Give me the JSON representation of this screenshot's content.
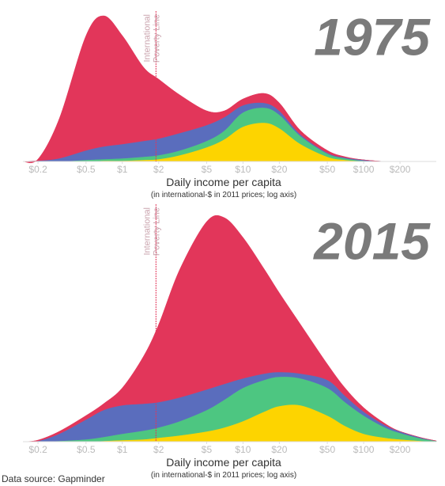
{
  "chart_data": [
    {
      "type": "area",
      "stacked": true,
      "title": "1975",
      "xscale": "log",
      "x": [
        0.15,
        0.2,
        0.3,
        0.5,
        0.7,
        1,
        1.5,
        2,
        3,
        5,
        7,
        10,
        15,
        20,
        30,
        50,
        70,
        100,
        150,
        200,
        300,
        400
      ],
      "series": [
        {
          "color": "#fdd400",
          "values": [
            0,
            0,
            0,
            0,
            1,
            1,
            2,
            3,
            8,
            18,
            28,
            44,
            49,
            42,
            22,
            6,
            2,
            0.5,
            0,
            0,
            0,
            0
          ]
        },
        {
          "color": "#4dc681",
          "values": [
            0,
            0,
            0,
            2,
            2,
            3,
            4,
            5,
            6,
            8,
            11,
            18,
            19,
            17,
            10,
            4,
            2,
            0.5,
            0,
            0,
            0,
            0
          ]
        },
        {
          "color": "#5a6dbd",
          "values": [
            0,
            1,
            4,
            12,
            16,
            18,
            20,
            21,
            22,
            20,
            17,
            9,
            6,
            5,
            2,
            1,
            1,
            1,
            0,
            0,
            0,
            0
          ]
        },
        {
          "color": "#e2365a",
          "values": [
            0,
            2,
            50,
            145,
            165,
            137,
            93,
            75,
            48,
            18,
            8,
            8,
            12,
            10,
            5,
            3,
            1,
            0,
            0,
            0,
            0,
            0
          ]
        }
      ],
      "xlim": [
        0.15,
        400
      ],
      "ylim": [
        0,
        190
      ],
      "xticks": [
        {
          "value": 0.2,
          "label": "$0.2"
        },
        {
          "value": 0.5,
          "label": "$0.5"
        },
        {
          "value": 1,
          "label": "$1"
        },
        {
          "value": 2,
          "label": "$2"
        },
        {
          "value": 5,
          "label": "$5"
        },
        {
          "value": 10,
          "label": "$10"
        },
        {
          "value": 20,
          "label": "$20"
        },
        {
          "value": 50,
          "label": "$50"
        },
        {
          "value": 100,
          "label": "$100"
        },
        {
          "value": 200,
          "label": "$200"
        }
      ],
      "xlabel": "Daily income per capita",
      "xlabel_note": "(in international-$ in 2011 prices; log axis)",
      "annotation": {
        "x": 1.9,
        "lines": [
          "International",
          "Poverty Line"
        ]
      }
    },
    {
      "type": "area",
      "stacked": true,
      "title": "2015",
      "xscale": "log",
      "x": [
        0.15,
        0.2,
        0.3,
        0.5,
        0.7,
        1,
        1.5,
        2,
        3,
        5,
        7,
        10,
        15,
        20,
        30,
        50,
        70,
        100,
        150,
        200,
        300,
        400
      ],
      "series": [
        {
          "color": "#fdd400",
          "values": [
            0,
            0,
            0,
            0,
            1,
            2,
            3,
            5,
            8,
            13,
            18,
            26,
            38,
            45,
            46,
            33,
            20,
            10,
            5,
            3,
            1,
            0
          ]
        },
        {
          "color": "#4dc681",
          "values": [
            0,
            0,
            1,
            3,
            5,
            8,
            11,
            13,
            18,
            27,
            35,
            42,
            40,
            37,
            34,
            35,
            30,
            23,
            13,
            8,
            3,
            1
          ]
        },
        {
          "color": "#5a6dbd",
          "values": [
            0,
            1,
            9,
            25,
            34,
            36,
            34,
            32,
            30,
            26,
            20,
            12,
            8,
            6,
            6,
            10,
            8,
            5,
            3,
            2,
            1,
            0
          ]
        },
        {
          "color": "#e2365a",
          "values": [
            0,
            1,
            3,
            5,
            8,
            22,
            60,
            98,
            162,
            212,
            210,
            178,
            132,
            100,
            62,
            20,
            10,
            5,
            2,
            0,
            0,
            0
          ]
        }
      ],
      "xlim": [
        0.15,
        400
      ],
      "ylim": [
        0,
        300
      ],
      "xticks": [
        {
          "value": 0.2,
          "label": "$0.2"
        },
        {
          "value": 0.5,
          "label": "$0.5"
        },
        {
          "value": 1,
          "label": "$1"
        },
        {
          "value": 2,
          "label": "$2"
        },
        {
          "value": 5,
          "label": "$5"
        },
        {
          "value": 10,
          "label": "$10"
        },
        {
          "value": 20,
          "label": "$20"
        },
        {
          "value": 50,
          "label": "$50"
        },
        {
          "value": 100,
          "label": "$100"
        },
        {
          "value": 200,
          "label": "$200"
        }
      ],
      "xlabel": "Daily income per capita",
      "xlabel_note": "(in international-$ in 2011 prices; log axis)",
      "annotation": {
        "x": 1.9,
        "lines": [
          "International",
          "Poverty Line"
        ]
      }
    }
  ],
  "source": "Data source: Gapminder"
}
